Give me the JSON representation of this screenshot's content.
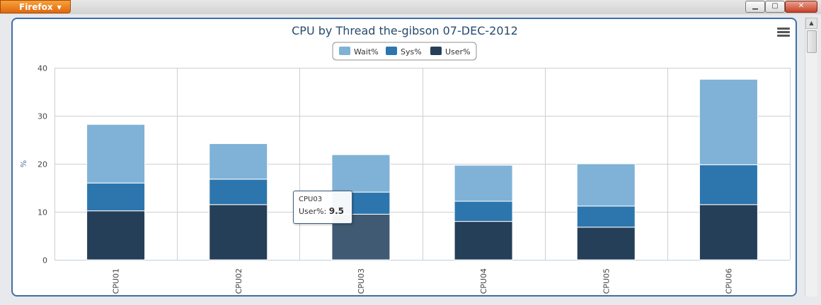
{
  "window": {
    "app_button": "Firefox",
    "min_label": "▁",
    "max_label": "▢",
    "close_label": "✕"
  },
  "colors": {
    "wait": "#7fb2d6",
    "sys": "#2d76ad",
    "user": "#253f58",
    "user_hover": "#405a73",
    "grid": "#cfcfcf",
    "text": "#444444"
  },
  "chart_data": {
    "type": "bar",
    "stacked": true,
    "title": "CPU by Thread the-gibson 07-DEC-2012",
    "xlabel": "",
    "ylabel": "%",
    "ylim": [
      0,
      40
    ],
    "yticks": [
      0,
      10,
      20,
      30,
      40
    ],
    "categories": [
      "CPU01",
      "CPU02",
      "CPU03",
      "CPU04",
      "CPU05",
      "CPU06"
    ],
    "series": [
      {
        "name": "Wait%",
        "values": [
          12.2,
          7.4,
          7.8,
          7.5,
          8.8,
          17.8
        ]
      },
      {
        "name": "Sys%",
        "values": [
          5.8,
          5.3,
          4.6,
          4.2,
          4.4,
          8.3
        ]
      },
      {
        "name": "User%",
        "values": [
          10.2,
          11.5,
          9.5,
          8.0,
          6.8,
          11.5
        ]
      }
    ],
    "legend": {
      "position": "top-center"
    },
    "grid": true,
    "tooltip": {
      "category": "CPU03",
      "series": "User%",
      "label": "User%:",
      "value": "9.5"
    }
  }
}
